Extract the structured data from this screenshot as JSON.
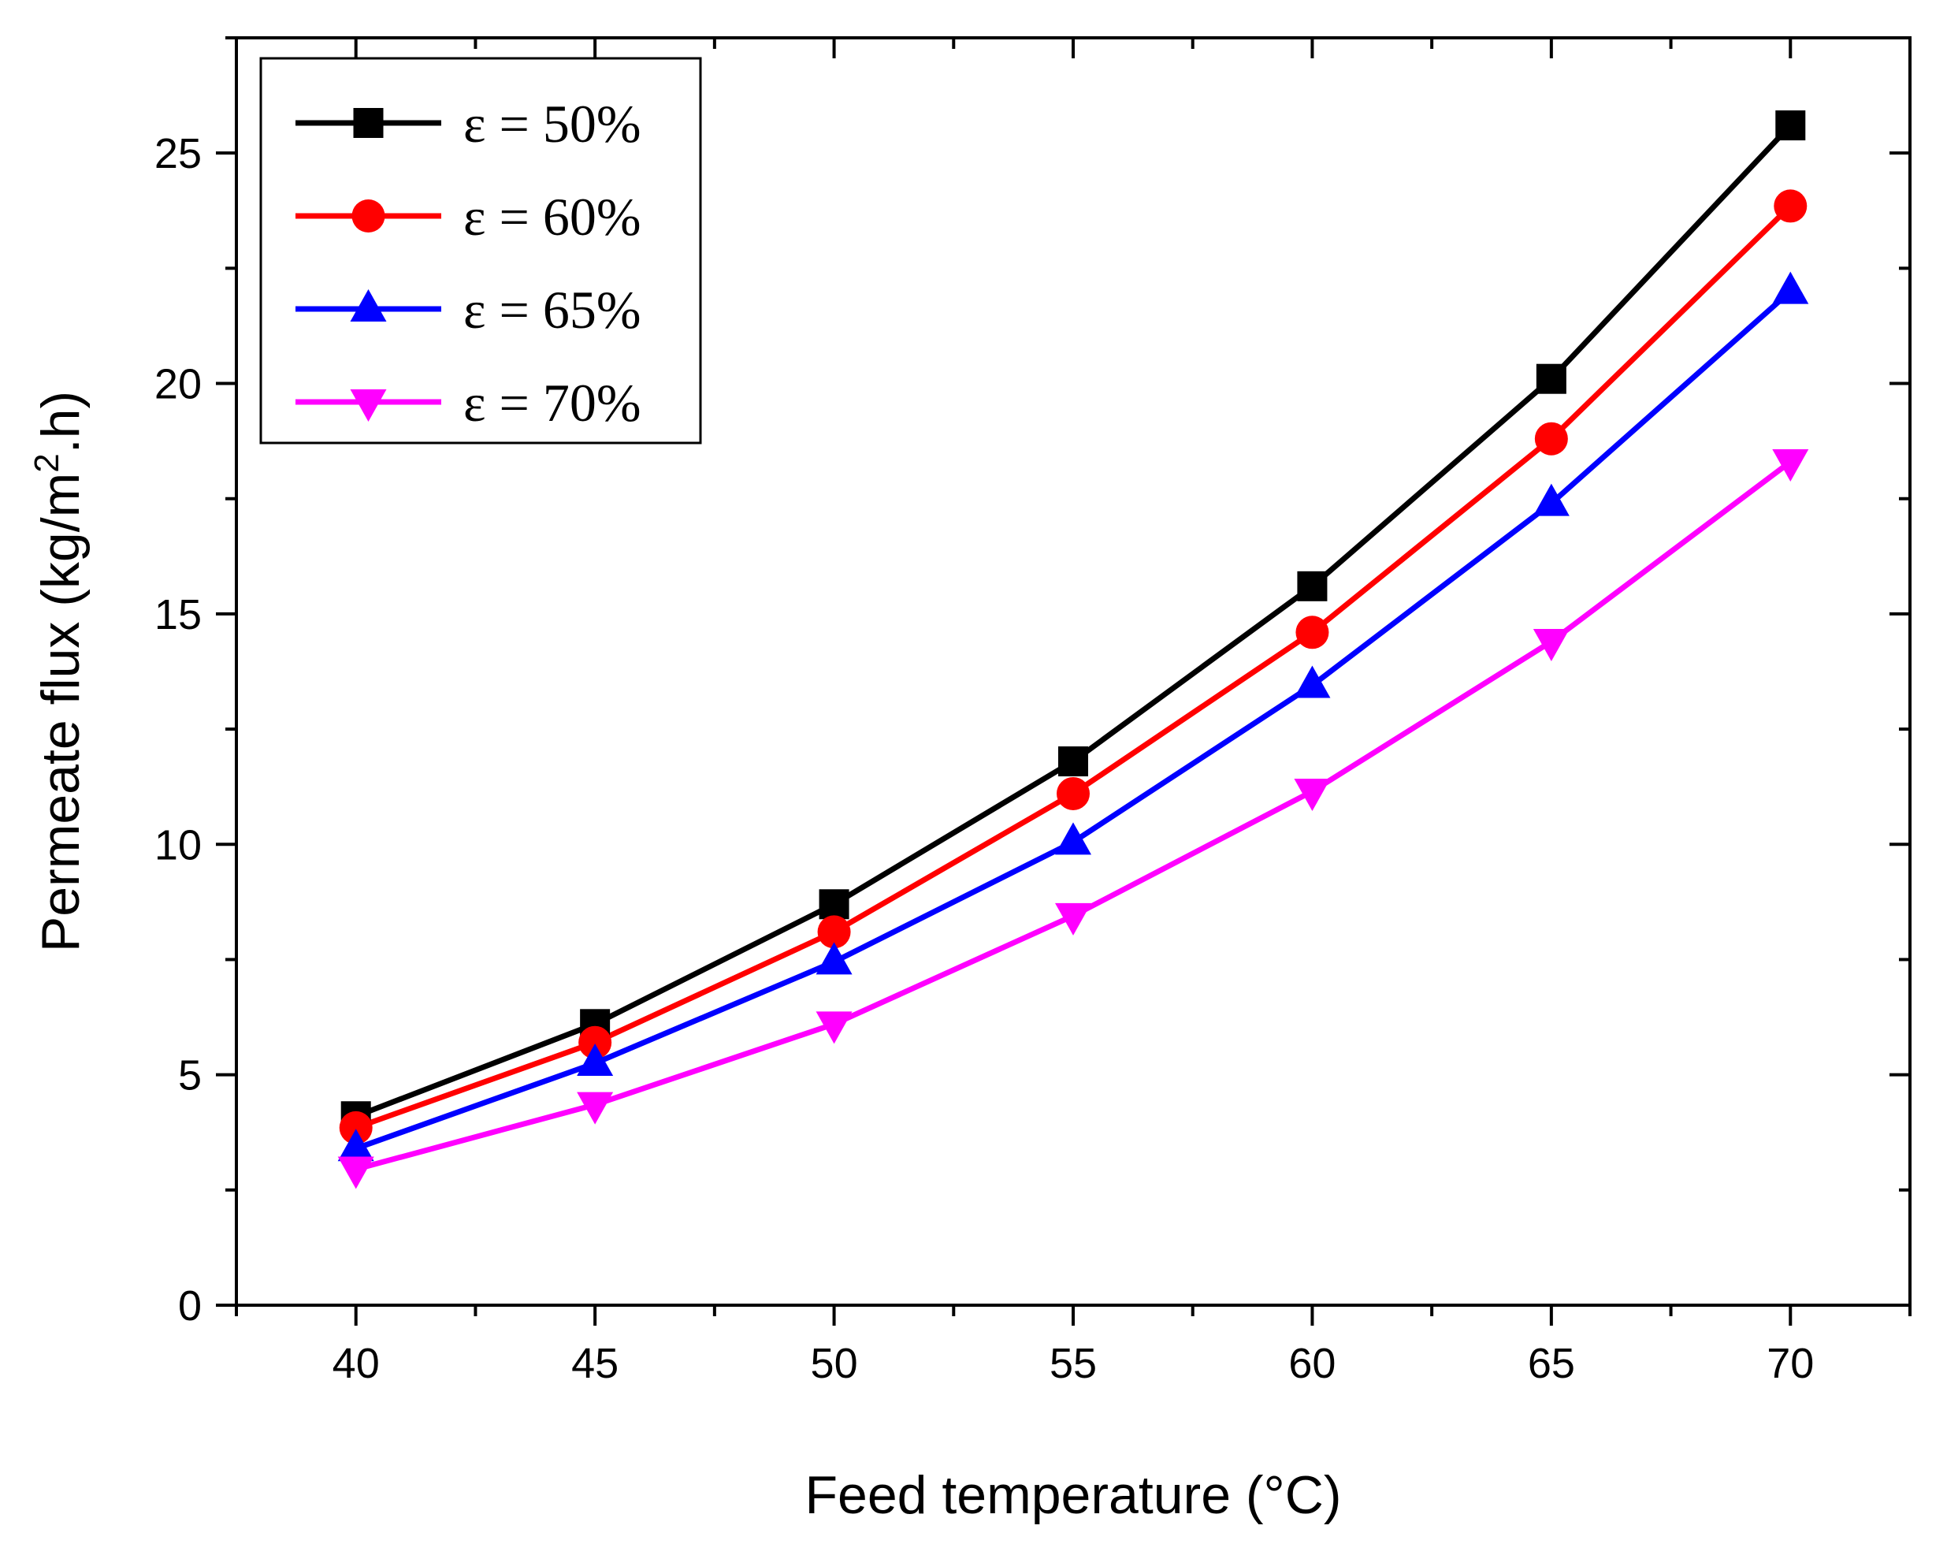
{
  "chart_data": {
    "type": "line",
    "xlabel": "Feed temperature (°C)",
    "ylabel_main": "Permeate flux (kg/m",
    "ylabel_sup": "2",
    "ylabel_tail": ".h)",
    "x": [
      40,
      45,
      50,
      55,
      60,
      65,
      70
    ],
    "xlim": [
      37.5,
      72.5
    ],
    "ylim": [
      0,
      27.5
    ],
    "xticks": [
      40,
      45,
      50,
      55,
      60,
      65,
      70
    ],
    "yticks": [
      0,
      5,
      10,
      15,
      20,
      25
    ],
    "legend_position": "top-left",
    "series": [
      {
        "name": "ε = 50%",
        "color": "#000000",
        "marker": "square",
        "values": [
          4.1,
          6.1,
          8.7,
          11.8,
          15.6,
          20.1,
          25.6
        ]
      },
      {
        "name": "ε = 60%",
        "color": "#ff0000",
        "marker": "circle",
        "values": [
          3.85,
          5.7,
          8.1,
          11.1,
          14.6,
          18.8,
          23.85
        ]
      },
      {
        "name": "ε = 65%",
        "color": "#0000ff",
        "marker": "triangle-up",
        "values": [
          3.4,
          5.25,
          7.45,
          10.05,
          13.45,
          17.4,
          22.0
        ]
      },
      {
        "name": "ε = 70%",
        "color": "#ff00ff",
        "marker": "triangle-down",
        "values": [
          2.95,
          4.35,
          6.1,
          8.45,
          11.15,
          14.4,
          18.3
        ]
      }
    ]
  }
}
